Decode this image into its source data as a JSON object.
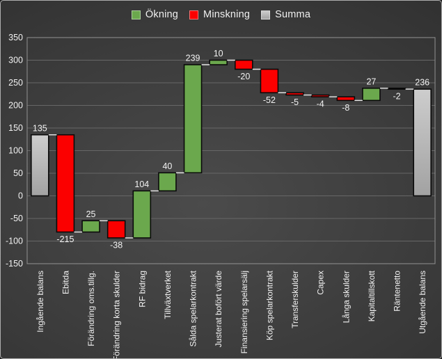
{
  "legend": {
    "items": [
      {
        "key": "increase",
        "label": "Ökning"
      },
      {
        "key": "decrease",
        "label": "Minskning"
      },
      {
        "key": "total",
        "label": "Summa"
      }
    ]
  },
  "colors": {
    "increase": "#6BA84D",
    "decrease": "#FB0000",
    "total_top": "#CDCDCD",
    "total_bottom": "#A2A2A2",
    "bar_border": "#0A0A0A",
    "connector": "#E9E9E9",
    "gridline": "#676767",
    "plot_border": "#929292",
    "text": "#F2F2F2",
    "background_center": "#4B4B4B",
    "background_mid": "#3A3A3A",
    "background_edge": "#262626"
  },
  "chart_data": {
    "type": "bar",
    "variant": "waterfall",
    "title": "",
    "xlabel": "",
    "ylabel": "",
    "grid": true,
    "legend_position": "top",
    "ylim": [
      -150,
      350
    ],
    "yticks": [
      350,
      300,
      250,
      200,
      150,
      100,
      50,
      0,
      -50,
      -100,
      -150
    ],
    "categories": [
      "Ingående balans",
      "Ebitda",
      "Förändring oms.tillg.",
      "Förändring korta skulder",
      "RF bidrag",
      "Tillväxtverket",
      "Sålda spelarkontrakt",
      "Justerat bofört värde",
      "Finansiering spelarsälj",
      "Köp spelarkontrakt",
      "Transferskulder",
      "Capex",
      "Långa skulder",
      "Kapitaltillskott",
      "Räntenetto",
      "Utgående balans"
    ],
    "points": [
      {
        "label": "Ingående balans",
        "value": 135,
        "kind": "total"
      },
      {
        "label": "Ebitda",
        "value": -215,
        "kind": "delta"
      },
      {
        "label": "Förändring oms.tillg.",
        "value": 25,
        "kind": "delta"
      },
      {
        "label": "Förändring korta skulder",
        "value": -38,
        "kind": "delta"
      },
      {
        "label": "RF bidrag",
        "value": 104,
        "kind": "delta"
      },
      {
        "label": "Tillväxtverket",
        "value": 40,
        "kind": "delta"
      },
      {
        "label": "Sålda spelarkontrakt",
        "value": 239,
        "kind": "delta"
      },
      {
        "label": "Justerat bofört värde",
        "value": 10,
        "kind": "delta"
      },
      {
        "label": "Finansiering spelarsälj",
        "value": -20,
        "kind": "delta"
      },
      {
        "label": "Köp spelarkontrakt",
        "value": -52,
        "kind": "delta"
      },
      {
        "label": "Transferskulder",
        "value": -5,
        "kind": "delta"
      },
      {
        "label": "Capex",
        "value": -4,
        "kind": "delta"
      },
      {
        "label": "Långa skulder",
        "value": -8,
        "kind": "delta"
      },
      {
        "label": "Kapitaltillskott",
        "value": 27,
        "kind": "delta"
      },
      {
        "label": "Räntenetto",
        "value": -2,
        "kind": "delta"
      },
      {
        "label": "Utgående balans",
        "value": 236,
        "kind": "total"
      }
    ]
  }
}
